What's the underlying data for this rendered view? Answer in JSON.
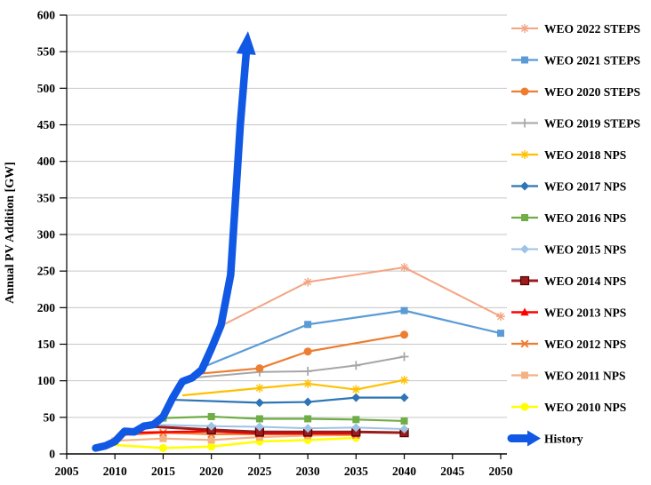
{
  "chart_data": {
    "type": "line",
    "title": "",
    "ylabel": "Annual PV Addition [GW]",
    "xlabel": "",
    "xlim": [
      2005,
      2050
    ],
    "ylim": [
      0,
      600
    ],
    "x_ticks": [
      2005,
      2010,
      2015,
      2020,
      2025,
      2030,
      2035,
      2040,
      2045,
      2050
    ],
    "y_ticks": [
      0,
      50,
      100,
      150,
      200,
      250,
      300,
      350,
      400,
      450,
      500,
      550,
      600
    ],
    "grid": "horizontal",
    "legend_position": "right",
    "series": [
      {
        "name": "WEO 2022 STEPS",
        "color": "#F4A483",
        "marker": "asterisk",
        "width": 2,
        "points": [
          [
            2021,
            175
          ],
          [
            2030,
            235
          ],
          [
            2040,
            255
          ],
          [
            2050,
            188
          ]
        ]
      },
      {
        "name": "WEO 2021 STEPS",
        "color": "#5B9BD5",
        "marker": "square",
        "width": 2.2,
        "points": [
          [
            2019,
            118
          ],
          [
            2030,
            177
          ],
          [
            2040,
            196
          ],
          [
            2050,
            165
          ]
        ]
      },
      {
        "name": "WEO 2020 STEPS",
        "color": "#ED7D31",
        "marker": "circle",
        "width": 2.2,
        "points": [
          [
            2019,
            110
          ],
          [
            2025,
            117
          ],
          [
            2030,
            140
          ],
          [
            2040,
            163
          ]
        ]
      },
      {
        "name": "WEO 2019 STEPS",
        "color": "#A6A6A6",
        "marker": "plus",
        "width": 2,
        "points": [
          [
            2018,
            104
          ],
          [
            2025,
            112
          ],
          [
            2030,
            113
          ],
          [
            2035,
            121
          ],
          [
            2040,
            133
          ]
        ]
      },
      {
        "name": "WEO 2018 NPS",
        "color": "#FFC000",
        "marker": "asterisk",
        "width": 2.2,
        "points": [
          [
            2017,
            80
          ],
          [
            2025,
            90
          ],
          [
            2030,
            96
          ],
          [
            2035,
            88
          ],
          [
            2040,
            101
          ]
        ]
      },
      {
        "name": "WEO 2017 NPS",
        "color": "#2E75B6",
        "marker": "diamond",
        "width": 2.2,
        "points": [
          [
            2016,
            74
          ],
          [
            2025,
            70
          ],
          [
            2030,
            71
          ],
          [
            2035,
            77
          ],
          [
            2040,
            77
          ]
        ]
      },
      {
        "name": "WEO 2016 NPS",
        "color": "#70AD47",
        "marker": "square",
        "width": 2.2,
        "points": [
          [
            2015,
            49
          ],
          [
            2020,
            51
          ],
          [
            2025,
            48
          ],
          [
            2030,
            48
          ],
          [
            2035,
            47
          ],
          [
            2040,
            45
          ]
        ]
      },
      {
        "name": "WEO 2015 NPS",
        "color": "#9DC3E6",
        "marker": "diamond",
        "width": 2,
        "points": [
          [
            2014,
            40
          ],
          [
            2020,
            38
          ],
          [
            2025,
            37
          ],
          [
            2030,
            35
          ],
          [
            2035,
            36
          ],
          [
            2040,
            34
          ]
        ]
      },
      {
        "name": "WEO 2014 NPS",
        "color": "#9E1B1B",
        "marker": "square-open",
        "width": 3,
        "points": [
          [
            2013,
            38
          ],
          [
            2020,
            33
          ],
          [
            2025,
            30
          ],
          [
            2030,
            30
          ],
          [
            2035,
            30
          ],
          [
            2040,
            29
          ]
        ]
      },
      {
        "name": "WEO 2013 NPS",
        "color": "#FF0000",
        "marker": "triangle",
        "width": 2.5,
        "points": [
          [
            2012,
            29
          ],
          [
            2020,
            31
          ],
          [
            2025,
            28
          ],
          [
            2030,
            28
          ],
          [
            2035,
            28
          ]
        ]
      },
      {
        "name": "WEO 2012 NPS",
        "color": "#ED7D31",
        "marker": "x",
        "width": 2.2,
        "points": [
          [
            2011,
            26
          ],
          [
            2015,
            29
          ],
          [
            2020,
            27
          ],
          [
            2025,
            27
          ],
          [
            2030,
            27
          ],
          [
            2035,
            26
          ]
        ]
      },
      {
        "name": "WEO 2011 NPS",
        "color": "#F4B183",
        "marker": "square",
        "width": 2.2,
        "points": [
          [
            2010,
            18
          ],
          [
            2015,
            21
          ],
          [
            2020,
            19
          ],
          [
            2025,
            23
          ],
          [
            2030,
            25
          ],
          [
            2035,
            26
          ]
        ]
      },
      {
        "name": "WEO 2010 NPS",
        "color": "#FFFF00",
        "marker": "circle",
        "width": 2.5,
        "points": [
          [
            2009,
            13
          ],
          [
            2015,
            8
          ],
          [
            2020,
            10
          ],
          [
            2025,
            17
          ],
          [
            2030,
            19
          ],
          [
            2035,
            22
          ]
        ]
      }
    ],
    "history": {
      "name": "History",
      "color": "#1158E4",
      "width": 8.5,
      "points": [
        [
          2008,
          8
        ],
        [
          2009,
          11
        ],
        [
          2010,
          17
        ],
        [
          2011,
          31
        ],
        [
          2012,
          30
        ],
        [
          2013,
          38
        ],
        [
          2014,
          40
        ],
        [
          2015,
          51
        ],
        [
          2016,
          77
        ],
        [
          2017,
          99
        ],
        [
          2018,
          104
        ],
        [
          2019,
          115
        ],
        [
          2020,
          144
        ],
        [
          2021,
          176
        ],
        [
          2022,
          245
        ],
        [
          2023,
          450
        ]
      ],
      "arrow_tip": [
        2023.8,
        578
      ]
    }
  }
}
